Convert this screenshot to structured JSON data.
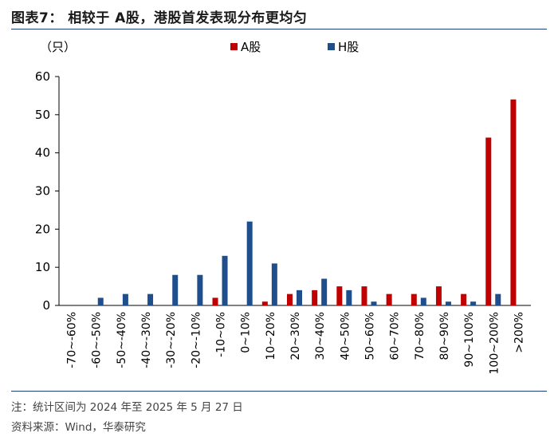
{
  "title": "图表7：  相较于 A股，港股首发表现分布更均匀",
  "unit_label": "（只）",
  "note": "注：统计区间为 2024 年至 2025 年 5 月 27 日",
  "source": "资料来源：Wind，华泰研究",
  "chart_data": {
    "type": "bar",
    "categories": [
      "-70~-60%",
      "-60~-50%",
      "-50~-40%",
      "-40~-30%",
      "-30~-20%",
      "-20~-10%",
      "-10~0%",
      "0~10%",
      "10~20%",
      "20~30%",
      "30~40%",
      "40~50%",
      "50~60%",
      "60~70%",
      "70~80%",
      "80~90%",
      "90~100%",
      "100~200%",
      ">200%"
    ],
    "series": [
      {
        "name": "A股",
        "color": "#c00000",
        "values": [
          0,
          0,
          0,
          0,
          0,
          0,
          2,
          0,
          1,
          3,
          4,
          5,
          5,
          3,
          3,
          5,
          3,
          44,
          54
        ]
      },
      {
        "name": "H股",
        "color": "#1f4e8c",
        "values": [
          0,
          2,
          3,
          3,
          8,
          8,
          13,
          22,
          11,
          4,
          7,
          4,
          1,
          0,
          2,
          1,
          1,
          3,
          0
        ]
      }
    ],
    "yticks": [
      0,
      10,
      20,
      30,
      40,
      50,
      60
    ],
    "ylim": [
      0,
      60
    ],
    "legend_position": "top-right"
  }
}
